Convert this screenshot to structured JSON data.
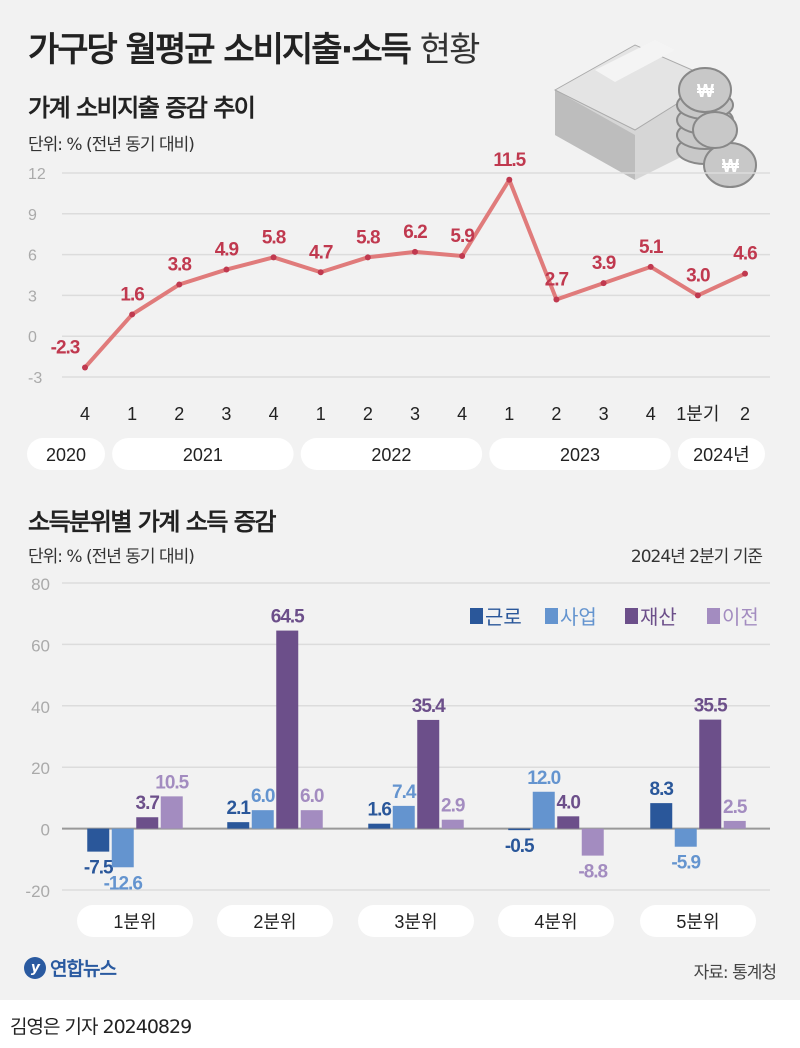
{
  "title": {
    "main": "가구당 월평균 소비지출·소득",
    "light": "현황"
  },
  "chart_data": [
    {
      "type": "line",
      "title": "가계 소비지출 증감 추이",
      "unit": "단위: % (전년 동기 대비)",
      "x": [
        "2020 4",
        "2021 1",
        "2021 2",
        "2021 3",
        "2021 4",
        "2022 1",
        "2022 2",
        "2022 3",
        "2022 4",
        "2023 1",
        "2023 2",
        "2023 3",
        "2023 4",
        "2024 1",
        "2024 2"
      ],
      "tick_labels": [
        "4",
        "1",
        "2",
        "3",
        "4",
        "1",
        "2",
        "3",
        "4",
        "1",
        "2",
        "3",
        "4",
        "1분기",
        "2"
      ],
      "year_labels": [
        "2020",
        "2021",
        "2022",
        "2023",
        "2024년"
      ],
      "values": [
        -2.3,
        1.6,
        3.8,
        4.9,
        5.8,
        4.7,
        5.8,
        6.2,
        5.9,
        11.5,
        2.7,
        3.9,
        5.1,
        3.0,
        4.6
      ],
      "value_labels": [
        "-2.3",
        "1.6",
        "3.8",
        "4.9",
        "5.8",
        "4.7",
        "5.8",
        "6.2",
        "5.9",
        "11.5",
        "2.7",
        "3.9",
        "5.1",
        "3.0",
        "4.6"
      ],
      "yticks": [
        "12",
        "9",
        "6",
        "3",
        "0",
        "-3"
      ],
      "ylim": [
        -3,
        12
      ],
      "grid": true,
      "color": "#e07b7b",
      "label_color": "#c0394f"
    },
    {
      "type": "bar",
      "title": "소득분위별 가계 소득 증감",
      "unit": "단위: % (전년 동기 대비)",
      "note": "2024년 2분기 기준",
      "categories": [
        "1분위",
        "2분위",
        "3분위",
        "4분위",
        "5분위"
      ],
      "series": [
        {
          "name": "근로",
          "values": [
            -7.5,
            2.1,
            1.6,
            -0.5,
            8.3
          ],
          "labels": [
            "-7.5",
            "2.1",
            "1.6",
            "-0.5",
            "8.3"
          ],
          "color": "#2a579a"
        },
        {
          "name": "사업",
          "values": [
            -12.6,
            6.0,
            7.4,
            12.0,
            -5.9
          ],
          "labels": [
            "-12.6",
            "6.0",
            "7.4",
            "12.0",
            "-5.9"
          ],
          "color": "#6494cf"
        },
        {
          "name": "재산",
          "values": [
            3.7,
            64.5,
            35.4,
            4.0,
            35.5
          ],
          "labels": [
            "3.7",
            "64.5",
            "35.4",
            "4.0",
            "35.5"
          ],
          "color": "#6c4f8a"
        },
        {
          "name": "이전",
          "values": [
            10.5,
            6.0,
            2.9,
            -8.8,
            2.5
          ],
          "labels": [
            "10.5",
            "6.0",
            "2.9",
            "-8.8",
            "2.5"
          ],
          "color": "#a38cc0"
        }
      ],
      "yticks": [
        "80",
        "60",
        "40",
        "20",
        "0",
        "-20"
      ],
      "ylim": [
        -20,
        80
      ],
      "grid": true,
      "legend": "top-right"
    }
  ],
  "footer": {
    "logo": "연합뉴스",
    "source": "자료: 통계청",
    "credit": "김영은 기자  20240829"
  },
  "icons": {
    "illustration": "money-stack-coins-icon"
  }
}
